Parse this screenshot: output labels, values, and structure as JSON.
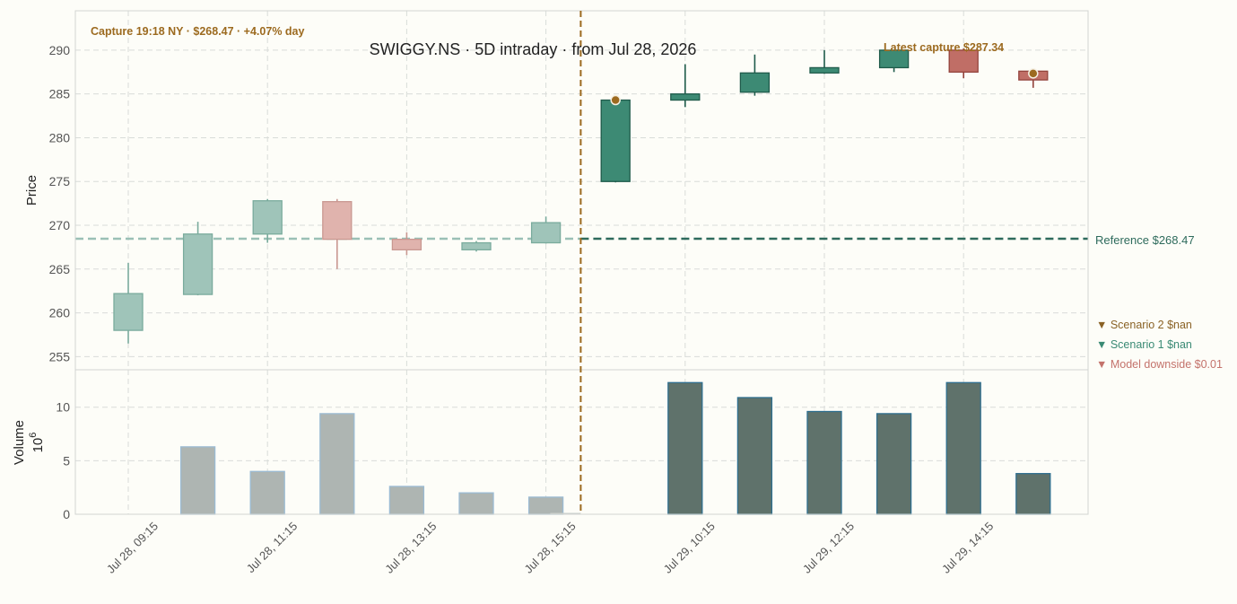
{
  "chart_data": {
    "type": "candlestick",
    "title": "SWIGGY.NS  ·  5D intraday  ·  from Jul 28, 2026",
    "ylabel": "Price",
    "volume_label": "Volume",
    "volume_exponent_label": "10",
    "volume_exponent_power": "6",
    "ylim": [
      253.5,
      294.5
    ],
    "volume_ylim": [
      0,
      13.5
    ],
    "price_ticks": [
      "255",
      "260",
      "265",
      "270",
      "275",
      "280",
      "285",
      "290"
    ],
    "volume_ticks": [
      "0",
      "5",
      "10"
    ],
    "x_tick_labels": [
      {
        "index": 0,
        "label": "Jul 28, 09:15"
      },
      {
        "index": 2,
        "label": "Jul 28, 11:15"
      },
      {
        "index": 4,
        "label": "Jul 28, 13:15"
      },
      {
        "index": 6,
        "label": "Jul 28, 15:15"
      },
      {
        "index": 8,
        "label": "Jul 29, 10:15"
      },
      {
        "index": 10,
        "label": "Jul 29, 12:15"
      },
      {
        "index": 12,
        "label": "Jul 29, 14:15"
      }
    ],
    "candles": [
      {
        "index": 0,
        "open": 258.0,
        "high": 265.7,
        "low": 256.5,
        "close": 262.2,
        "volume": 0
      },
      {
        "index": 1,
        "open": 262.1,
        "high": 270.4,
        "low": 262.0,
        "close": 269.0,
        "volume": 6.3
      },
      {
        "index": 2,
        "open": 269.0,
        "high": 273.0,
        "low": 268.0,
        "close": 272.8,
        "volume": 4.0
      },
      {
        "index": 3,
        "open": 272.7,
        "high": 273.0,
        "low": 265.0,
        "close": 268.4,
        "volume": 9.4
      },
      {
        "index": 4,
        "open": 268.4,
        "high": 269.2,
        "low": 266.6,
        "close": 267.2,
        "volume": 2.6
      },
      {
        "index": 5,
        "open": 267.2,
        "high": 268.2,
        "low": 267.0,
        "close": 268.0,
        "volume": 2.0
      },
      {
        "index": 6,
        "open": 268.0,
        "high": 271.0,
        "low": 267.9,
        "close": 270.3,
        "volume": 1.6
      },
      {
        "index": 7,
        "open": 275.0,
        "high": 284.5,
        "low": 274.9,
        "close": 284.3,
        "volume": 0
      },
      {
        "index": 8,
        "open": 284.3,
        "high": 288.4,
        "low": 283.5,
        "close": 285.0,
        "volume": 12.3
      },
      {
        "index": 9,
        "open": 285.2,
        "high": 289.5,
        "low": 284.8,
        "close": 287.4,
        "volume": 10.9
      },
      {
        "index": 10,
        "open": 287.4,
        "high": 290.0,
        "low": 287.3,
        "close": 288.0,
        "volume": 9.6
      },
      {
        "index": 11,
        "open": 288.0,
        "high": 290.0,
        "low": 287.5,
        "close": 290.0,
        "volume": 9.4
      },
      {
        "index": 12,
        "open": 290.0,
        "high": 290.2,
        "low": 286.8,
        "close": 287.5,
        "volume": 12.3
      },
      {
        "index": 13,
        "open": 287.6,
        "high": 287.6,
        "low": 285.7,
        "close": 286.6,
        "volume": 3.8
      }
    ],
    "session_split_index": 6.5,
    "reference": {
      "value": 268.47,
      "label": "Reference $268.47"
    },
    "capture_marker": {
      "index": 7,
      "value": 284.3
    },
    "latest_marker": {
      "index": 13,
      "value": 287.34
    },
    "annotations": {
      "capture": "Capture 19:18 NY · $268.47 · +4.07% day",
      "latest": "Latest capture $287.34"
    },
    "scenario_labels": [
      {
        "text": "▼ Scenario 2 $nan",
        "color": "#8a6226"
      },
      {
        "text": "▼ Scenario 1 $nan",
        "color": "#3a8a74"
      },
      {
        "text": "▼ Model downside $0.01",
        "color": "#c4736c"
      }
    ],
    "colors": {
      "up_faded": "#9fc4b9",
      "up_faded_edge": "#7aab9d",
      "down_faded": "#e0b3ad",
      "down_faded_edge": "#c99891",
      "up": "#3d8a74",
      "up_edge": "#1f5b4b",
      "down": "#c06e66",
      "down_edge": "#93433c",
      "volume_faded": "#aeb5b2",
      "volume_faded_edge": "#9bbbd3",
      "volume": "#5f726b",
      "volume_edge": "#2f6f8f",
      "accent": "#9c6a1f",
      "reference_faded": "#9ac0b5",
      "reference": "#2e6b5c",
      "grid": "#d9dcd9",
      "axis_text": "#555555"
    }
  }
}
